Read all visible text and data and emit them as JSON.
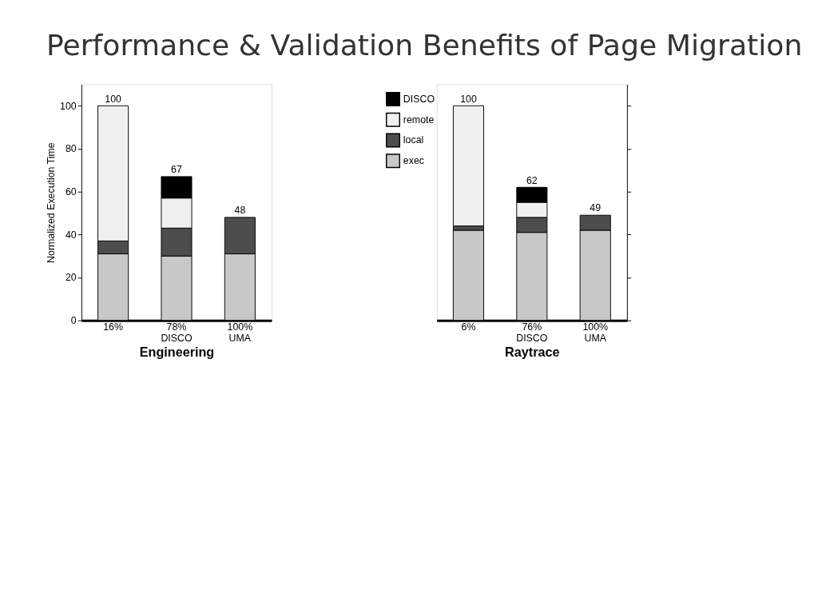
{
  "chart_data": [
    {
      "type": "bar",
      "title": "Performance & Validation Benefits of Page Migration",
      "xlabel": "Engineering",
      "ylabel": "Normalized Execution Time",
      "categories": [
        "16%",
        "78% DISCO",
        "100% UMA"
      ],
      "stacked": true,
      "ylim": [
        0,
        110
      ],
      "yticks": [
        0,
        20,
        40,
        60,
        80,
        100
      ],
      "totals": [
        "100",
        "67",
        "48"
      ],
      "legend": "top right",
      "grid": false,
      "series": [
        {
          "name": "exec",
          "color": "#c8c8c8",
          "values": [
            31,
            30,
            31
          ]
        },
        {
          "name": "local",
          "color": "#4d4d4d",
          "values": [
            6,
            13,
            17
          ]
        },
        {
          "name": "remote",
          "color": "#f0f0f0",
          "values": [
            63,
            14,
            null
          ]
        },
        {
          "name": "DISCO",
          "color": "#000000",
          "values": [
            null,
            10,
            null
          ]
        }
      ]
    },
    {
      "type": "bar",
      "xlabel": "Raytrace",
      "categories": [
        "6%",
        "76% DISCO",
        "100% UMA"
      ],
      "stacked": true,
      "ylim": [
        0,
        110
      ],
      "yticks": [
        0,
        20,
        40,
        60,
        80,
        100
      ],
      "tick_labels": "x",
      "totals": [
        "100",
        "62",
        "49"
      ],
      "grid": false,
      "series": [
        {
          "color": "#c8c8c8",
          "values": [
            42,
            41,
            42
          ]
        },
        {
          "color": "#4d4d4d",
          "values": [
            2,
            7,
            7
          ]
        },
        {
          "color": "#f0f0f0",
          "values": [
            56,
            7,
            null
          ]
        },
        {
          "color": "#000000",
          "values": [
            null,
            7,
            null
          ]
        }
      ]
    }
  ]
}
